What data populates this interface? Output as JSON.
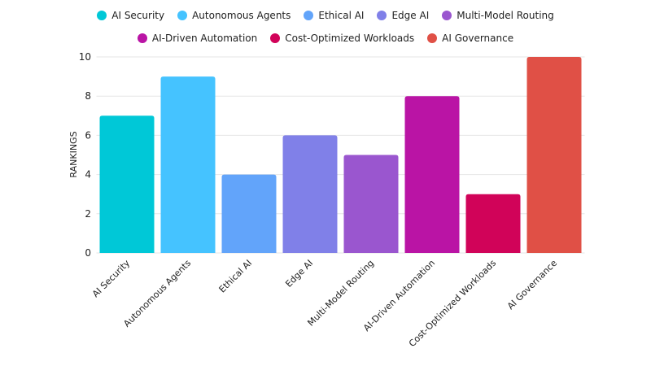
{
  "chart_data": {
    "type": "bar",
    "categories": [
      "AI Security",
      "Autonomous Agents",
      "Ethical AI",
      "Edge AI",
      "Multi-Model Routing",
      "AI-Driven Automation",
      "Cost-Optimized Workloads",
      "AI Governance"
    ],
    "values": [
      7,
      9,
      4,
      6,
      5,
      8,
      3,
      10
    ],
    "colors": [
      "#00C8D7",
      "#45C3FF",
      "#62A4FA",
      "#8080E8",
      "#9A56CF",
      "#BA14A5",
      "#D10359",
      "#E05046"
    ],
    "xlabel": "",
    "ylabel": "RANKINGS",
    "ylim": [
      0,
      10
    ],
    "yticks": [
      "0",
      "2",
      "4",
      "6",
      "8",
      "10"
    ],
    "grid": true,
    "legend": "top"
  }
}
